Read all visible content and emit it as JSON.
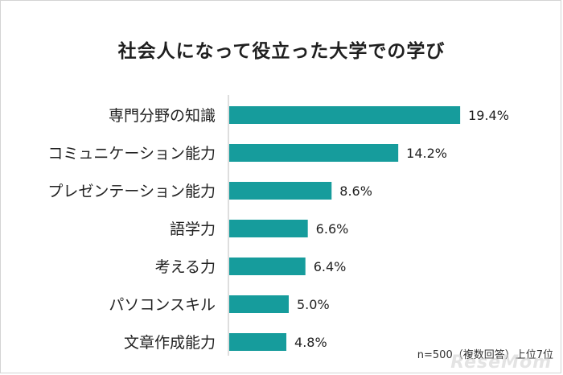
{
  "chart_data": {
    "type": "bar",
    "orientation": "horizontal",
    "title": "社会人になって役立った大学での学び",
    "categories": [
      "専門分野の知識",
      "コミュニケーション能力",
      "プレゼンテーション能力",
      "語学力",
      "考える力",
      "パソコンスキル",
      "文章作成能力"
    ],
    "values": [
      19.4,
      14.2,
      8.6,
      6.6,
      6.4,
      5.0,
      4.8
    ],
    "value_labels": [
      "19.4%",
      "14.2%",
      "8.6%",
      "6.6%",
      "6.4%",
      "5.0%",
      "4.8%"
    ],
    "xlim": [
      0,
      20
    ],
    "grid": false,
    "bar_color": "#169c9c",
    "note": "n=500（複数回答）上位7位"
  },
  "branding": {
    "watermark": "ReseMom"
  }
}
